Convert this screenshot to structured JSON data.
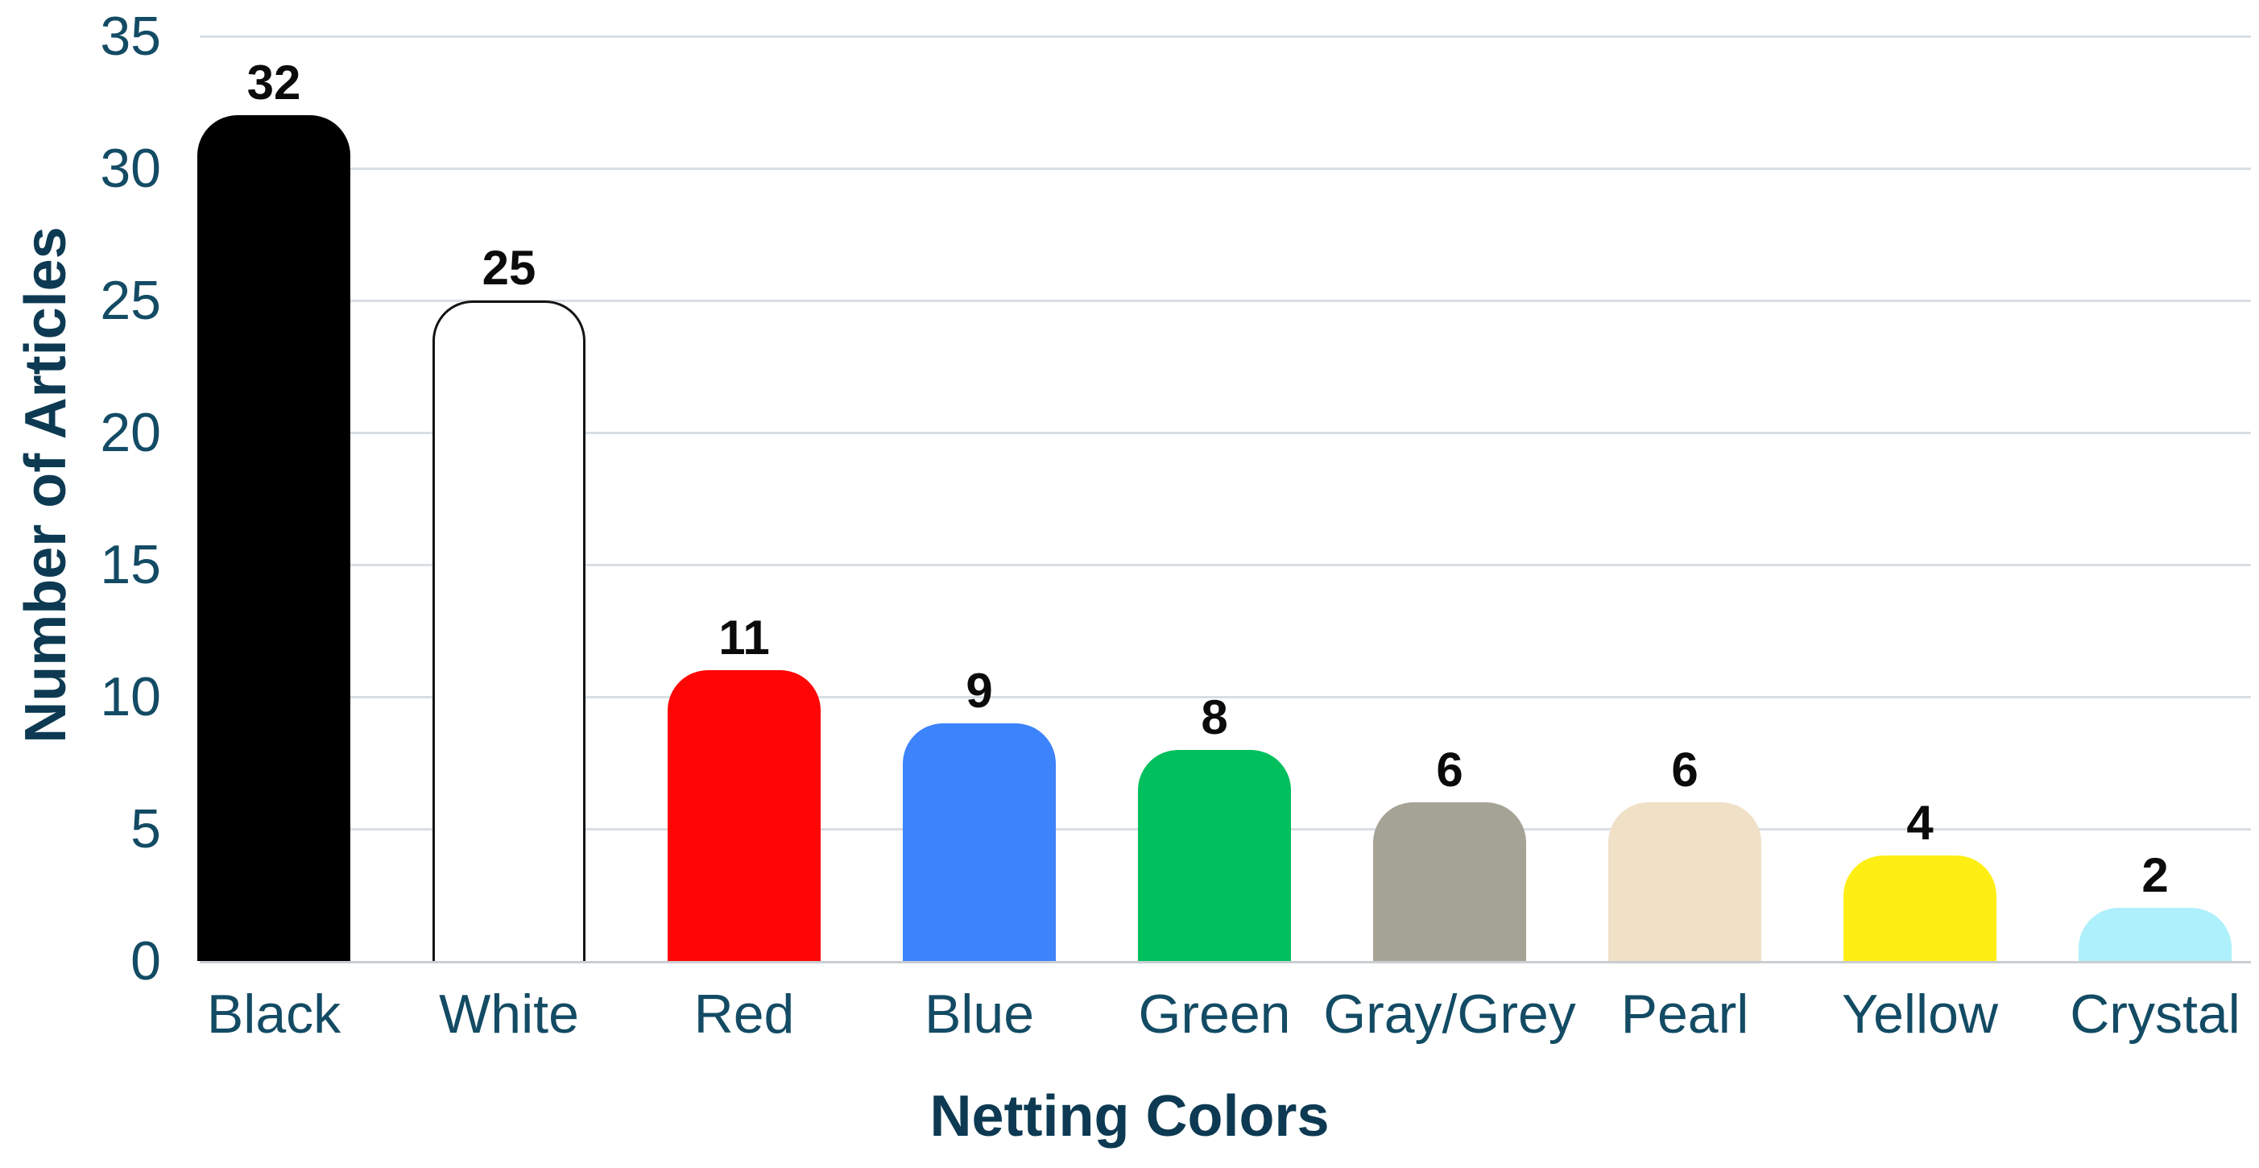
{
  "style": {
    "background": "#ffffff",
    "axis_text_color": "#134b64",
    "title_text_color": "#0d3a52",
    "value_text_color": "#0b0b0b",
    "gridline_color": "#d8dfe4",
    "baseline_color": "#c9ced3"
  },
  "chart_data": {
    "type": "bar",
    "title": "",
    "xlabel": "Netting Colors",
    "ylabel": "Number of Articles",
    "categories": [
      "Black",
      "White",
      "Red",
      "Blue",
      "Green",
      "Gray/Grey",
      "Pearl",
      "Yellow",
      "Crystal"
    ],
    "values": [
      32,
      25,
      11,
      9,
      8,
      6,
      6,
      4,
      2
    ],
    "value_labels": [
      "32",
      "25",
      "11",
      "9",
      "8",
      "6",
      "6",
      "4",
      "2"
    ],
    "bar_colors": [
      "#000000",
      "#ffffff",
      "#fe0606",
      "#3d83fb",
      "#01bf5d",
      "#a5a396",
      "#efe0c6",
      "#ffee14",
      "#aef0fb"
    ],
    "bar_border_colors": [
      "",
      "#141414",
      "",
      "",
      "",
      "",
      "",
      "",
      ""
    ],
    "y_ticks": [
      0,
      5,
      10,
      15,
      20,
      25,
      30,
      35
    ],
    "ylim": [
      0,
      35
    ],
    "grid": true,
    "legend_position": "none"
  }
}
